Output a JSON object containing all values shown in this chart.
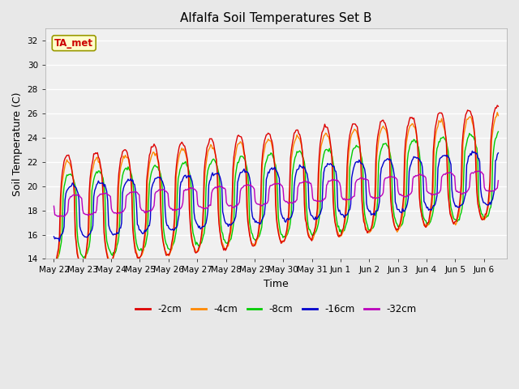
{
  "title": "Alfalfa Soil Temperatures Set B",
  "xlabel": "Time",
  "ylabel": "Soil Temperature (C)",
  "ylim": [
    14,
    33
  ],
  "yticks": [
    14,
    16,
    18,
    20,
    22,
    24,
    26,
    28,
    30,
    32
  ],
  "fig_bg_color": "#e8e8e8",
  "plot_bg_color": "#f0f0f0",
  "legend_entries": [
    "-2cm",
    "-4cm",
    "-8cm",
    "-16cm",
    "-32cm"
  ],
  "line_colors": [
    "#dd0000",
    "#ff8800",
    "#00cc00",
    "#0000cc",
    "#bb00bb"
  ],
  "ta_met_label": "TA_met",
  "ta_met_bg": "#ffffcc",
  "ta_met_border": "#999900",
  "ta_met_text_color": "#cc0000",
  "grid_color": "#ffffff",
  "tick_labels": [
    "May 22",
    "May 23",
    "May 24",
    "May 25",
    "May 26",
    "May 27",
    "May 28",
    "May 29",
    "May 30",
    "May 31",
    "Jun 1",
    "Jun 2",
    "Jun 3",
    "Jun 4",
    "Jun 5",
    "Jun 6"
  ]
}
